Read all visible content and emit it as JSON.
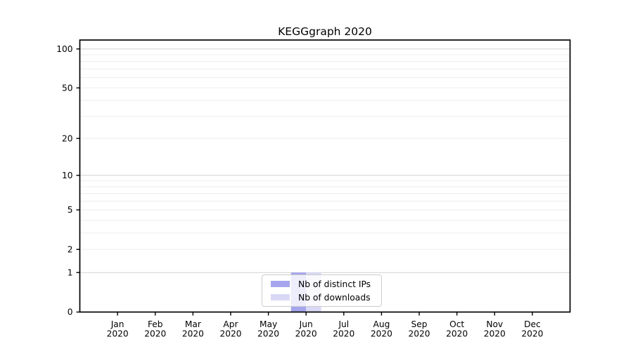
{
  "chart_data": {
    "type": "bar",
    "title": "KEGGgraph 2020",
    "categories": [
      "Jan 2020",
      "Feb 2020",
      "Mar 2020",
      "Apr 2020",
      "May 2020",
      "Jun 2020",
      "Jul 2020",
      "Aug 2020",
      "Sep 2020",
      "Oct 2020",
      "Nov 2020",
      "Dec 2020"
    ],
    "series": [
      {
        "name": "Nb of distinct IPs",
        "color": "#a5a5ee",
        "values": [
          0,
          0,
          0,
          0,
          0,
          1,
          0,
          0,
          0,
          0,
          0,
          0
        ]
      },
      {
        "name": "Nb of downloads",
        "color": "#d9d9f6",
        "values": [
          0,
          0,
          0,
          0,
          0,
          1,
          0,
          0,
          0,
          0,
          0,
          0
        ]
      }
    ],
    "xlabel": "",
    "ylabel": "",
    "y_ticks": [
      0,
      1,
      2,
      5,
      10,
      20,
      50,
      100
    ],
    "ylim": [
      0,
      100
    ],
    "y_scale": "log10(1+x)",
    "grid": true,
    "legend_position": "inside-bottom-center",
    "colors": {
      "axis_frame": "#000000",
      "major_gridline": "#d2d2d2",
      "minor_gridline": "#ededed",
      "text": "#000000",
      "background": "#ffffff",
      "legend_border": "#cccccc"
    }
  }
}
